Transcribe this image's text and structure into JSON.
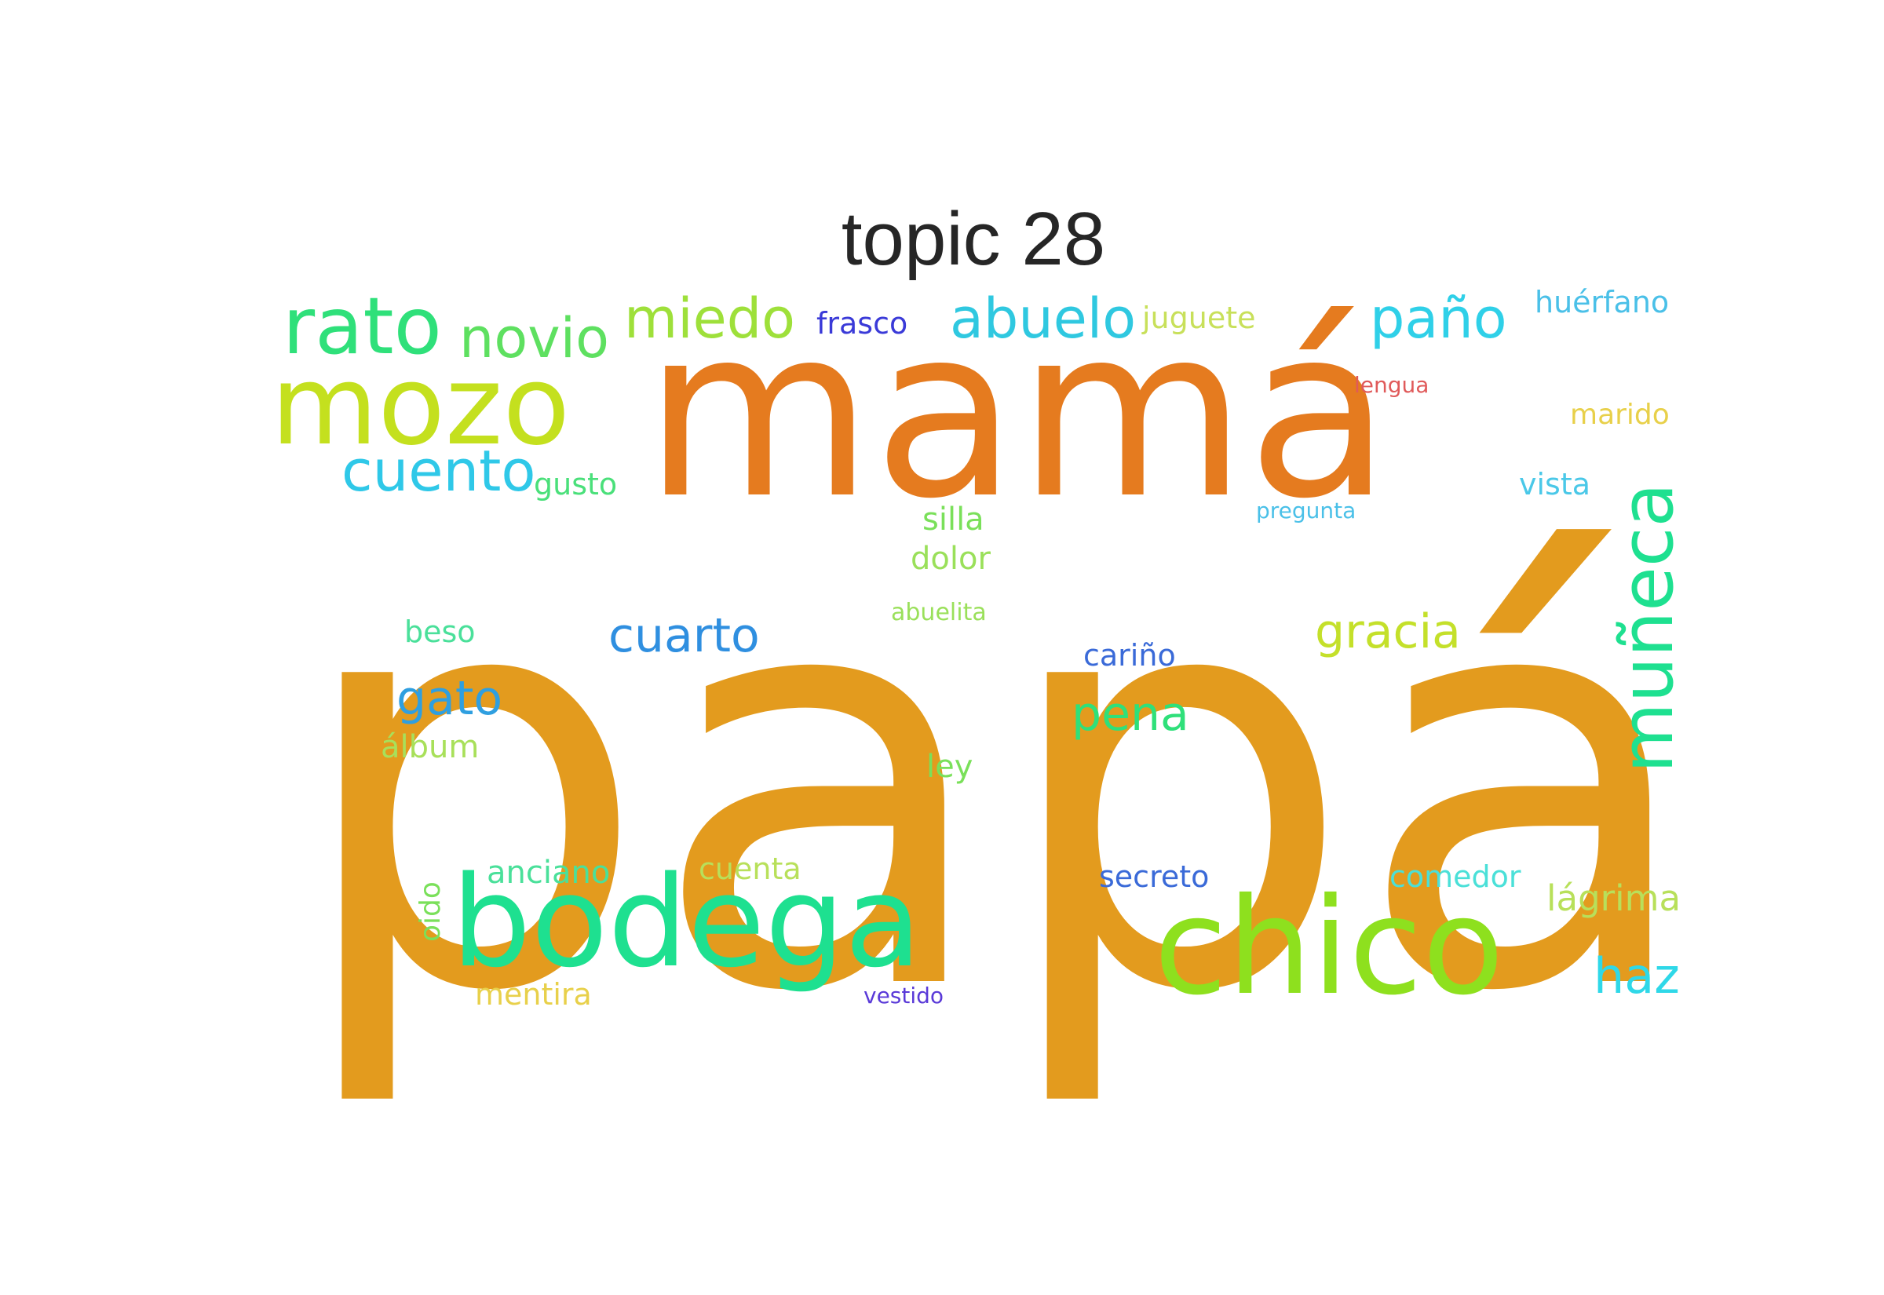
{
  "title": "topic 28",
  "words": [
    {
      "text": "papá",
      "color": "#E39B1E"
    },
    {
      "text": "mamá",
      "color": "#E57B1F"
    },
    {
      "text": "chico",
      "color": "#8EE01E"
    },
    {
      "text": "bodega",
      "color": "#1EE090"
    },
    {
      "text": "mozo",
      "color": "#C4E01E"
    },
    {
      "text": "muñeca",
      "color": "#1EE090"
    },
    {
      "text": "rato",
      "color": "#2FE07A"
    },
    {
      "text": "novio",
      "color": "#5EE060"
    },
    {
      "text": "miedo",
      "color": "#9EE03A"
    },
    {
      "text": "abuelo",
      "color": "#2FC8E0"
    },
    {
      "text": "paño",
      "color": "#2FD0E8"
    },
    {
      "text": "cuento",
      "color": "#2FC8E8"
    },
    {
      "text": "cuarto",
      "color": "#2F8FE0"
    },
    {
      "text": "gato",
      "color": "#2F9FE0"
    },
    {
      "text": "gracia",
      "color": "#C4E02A"
    },
    {
      "text": "pena",
      "color": "#2FE07A"
    },
    {
      "text": "haz",
      "color": "#2FD8E8"
    },
    {
      "text": "lágrima",
      "color": "#B8E05A"
    },
    {
      "text": "frasco",
      "color": "#3A3AD8"
    },
    {
      "text": "juguete",
      "color": "#C8E05A"
    },
    {
      "text": "huérfano",
      "color": "#4AC0E8"
    },
    {
      "text": "lengua",
      "color": "#E05A5A"
    },
    {
      "text": "marido",
      "color": "#E8D04A"
    },
    {
      "text": "gusto",
      "color": "#4AE07A"
    },
    {
      "text": "vista",
      "color": "#4AC8E8"
    },
    {
      "text": "pregunta",
      "color": "#4AC0E8"
    },
    {
      "text": "silla",
      "color": "#7AE05A"
    },
    {
      "text": "dolor",
      "color": "#9AE05A"
    },
    {
      "text": "abuelita",
      "color": "#9AE05A"
    },
    {
      "text": "beso",
      "color": "#4AE09A"
    },
    {
      "text": "cariño",
      "color": "#3A6AD8"
    },
    {
      "text": "álbum",
      "color": "#A8E05A"
    },
    {
      "text": "ley",
      "color": "#7AE05A"
    },
    {
      "text": "anciano",
      "color": "#4AE09A"
    },
    {
      "text": "cuenta",
      "color": "#B8E05A"
    },
    {
      "text": "oido",
      "color": "#7AE05A"
    },
    {
      "text": "mentira",
      "color": "#E8D04A"
    },
    {
      "text": "vestido",
      "color": "#5A3AD8"
    },
    {
      "text": "secreto",
      "color": "#3A6AD8"
    },
    {
      "text": "comedor",
      "color": "#4AE0D8"
    }
  ]
}
